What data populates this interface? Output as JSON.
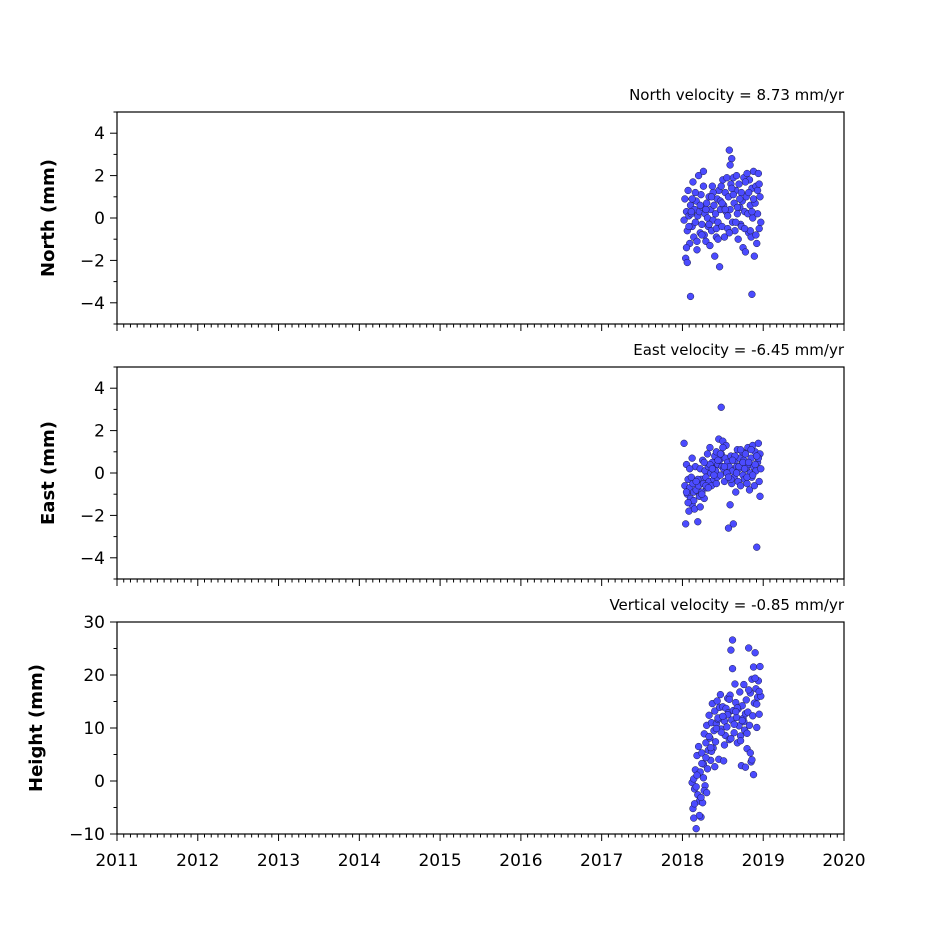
{
  "chart_data": [
    {
      "type": "scatter",
      "title": "North velocity = 8.73 mm/yr",
      "xlabel": "",
      "ylabel": "North (mm)",
      "xlim": [
        2011,
        2020
      ],
      "ylim": [
        -5,
        5
      ],
      "yticks": [
        "4",
        "2",
        "0",
        "−2",
        "−4"
      ],
      "ytick_values": [
        4,
        2,
        0,
        -2,
        -4
      ],
      "xticks": [],
      "color": "#4b4bff",
      "series": [
        {
          "x": [
            2018.02,
            2018.03,
            2018.04,
            2018.05,
            2018.06,
            2018.07,
            2018.08,
            2018.09,
            2018.1,
            2018.11,
            2018.12,
            2018.13,
            2018.14,
            2018.15,
            2018.16,
            2018.17,
            2018.18,
            2018.19,
            2018.2,
            2018.21,
            2018.22,
            2018.23,
            2018.24,
            2018.25,
            2018.26,
            2018.27,
            2018.28,
            2018.29,
            2018.3,
            2018.31,
            2018.32,
            2018.33,
            2018.34,
            2018.35,
            2018.36,
            2018.37,
            2018.38,
            2018.39,
            2018.4,
            2018.41,
            2018.42,
            2018.43,
            2018.44,
            2018.45,
            2018.46,
            2018.47,
            2018.48,
            2018.49,
            2018.5,
            2018.51,
            2018.52,
            2018.53,
            2018.54,
            2018.55,
            2018.56,
            2018.57,
            2018.58,
            2018.59,
            2018.6,
            2018.61,
            2018.62,
            2018.63,
            2018.64,
            2018.65,
            2018.66,
            2018.67,
            2018.68,
            2018.69,
            2018.7,
            2018.71,
            2018.72,
            2018.73,
            2018.74,
            2018.75,
            2018.76,
            2018.77,
            2018.78,
            2018.79,
            2018.8,
            2018.81,
            2018.82,
            2018.83,
            2018.84,
            2018.85,
            2018.86,
            2018.87,
            2018.88,
            2018.89,
            2018.9,
            2018.91,
            2018.92,
            2018.93,
            2018.94,
            2018.95,
            2018.96,
            2018.97,
            2018.05,
            2018.08,
            2018.12,
            2018.18,
            2018.22,
            2018.26,
            2018.33,
            2018.38,
            2018.42,
            2018.47,
            2018.53,
            2018.58,
            2018.63,
            2018.68,
            2018.73,
            2018.78,
            2018.84,
            2018.88,
            2018.93,
            2018.06,
            2018.11,
            2018.16,
            2018.24,
            2018.29,
            2018.36,
            2018.44,
            2018.49,
            2018.56,
            2018.61,
            2018.66,
            2018.71,
            2018.77,
            2018.82,
            2018.86,
            2018.91,
            2018.95,
            2018.1,
            2018.59,
            2018.86
          ],
          "y": [
            -0.1,
            0.9,
            -1.9,
            0.3,
            -0.6,
            1.3,
            0.1,
            -1.2,
            0.6,
            0.2,
            -0.4,
            1.7,
            -0.9,
            0.4,
            -0.2,
            0.8,
            -1.5,
            0.1,
            2.0,
            0.3,
            -0.7,
            1.1,
            -0.3,
            0.5,
            2.2,
            -0.8,
            0.2,
            -1.1,
            0.7,
            0.0,
            -0.4,
            1.0,
            -1.3,
            0.4,
            -0.6,
            1.5,
            -0.1,
            0.6,
            -1.8,
            0.2,
            -0.5,
            0.9,
            -0.2,
            1.3,
            -2.3,
            0.4,
            1.5,
            -0.4,
            1.8,
            0.6,
            -0.9,
            1.2,
            0.3,
            1.9,
            -0.5,
            1.0,
            3.2,
            0.4,
            1.6,
            2.8,
            -0.2,
            1.9,
            0.7,
            -0.6,
            1.3,
            2.0,
            0.2,
            -1.0,
            1.6,
            0.5,
            -0.3,
            1.2,
            0.8,
            -1.4,
            1.9,
            0.3,
            -1.6,
            1.0,
            2.1,
            0.2,
            -0.7,
            1.8,
            0.6,
            -0.9,
            1.4,
            0.0,
            2.2,
            -1.8,
            0.7,
            1.5,
            -1.2,
            0.2,
            2.1,
            -0.5,
            1.0,
            -0.2,
            -1.4,
            -0.4,
            0.9,
            -1.1,
            0.6,
            1.5,
            -0.3,
            1.2,
            -0.9,
            0.8,
            0.4,
            -0.7,
            1.1,
            0.5,
            -0.4,
            1.7,
            -0.6,
            0.9,
            1.3,
            -2.1,
            0.3,
            1.2,
            -0.8,
            0.4,
            1.0,
            -1.0,
            0.7,
            0.1,
            1.4,
            -0.2,
            0.9,
            -0.5,
            1.2,
            0.3,
            -0.8,
            1.6,
            -3.7,
            2.5,
            -3.6
          ]
        }
      ]
    },
    {
      "type": "scatter",
      "title": "East velocity = -6.45 mm/yr",
      "xlabel": "",
      "ylabel": "East (mm)",
      "xlim": [
        2011,
        2020
      ],
      "ylim": [
        -5,
        5
      ],
      "yticks": [
        "4",
        "2",
        "0",
        "−2",
        "−4"
      ],
      "ytick_values": [
        4,
        2,
        0,
        -2,
        -4
      ],
      "xticks": [],
      "color": "#4b4bff",
      "series": [
        {
          "x": [
            2018.02,
            2018.03,
            2018.04,
            2018.05,
            2018.06,
            2018.07,
            2018.08,
            2018.09,
            2018.1,
            2018.11,
            2018.12,
            2018.13,
            2018.14,
            2018.15,
            2018.16,
            2018.17,
            2018.18,
            2018.19,
            2018.2,
            2018.21,
            2018.22,
            2018.23,
            2018.24,
            2018.25,
            2018.26,
            2018.27,
            2018.28,
            2018.29,
            2018.3,
            2018.31,
            2018.32,
            2018.33,
            2018.34,
            2018.35,
            2018.36,
            2018.37,
            2018.38,
            2018.39,
            2018.4,
            2018.41,
            2018.42,
            2018.43,
            2018.44,
            2018.45,
            2018.46,
            2018.47,
            2018.48,
            2018.49,
            2018.5,
            2018.51,
            2018.52,
            2018.53,
            2018.54,
            2018.55,
            2018.56,
            2018.57,
            2018.58,
            2018.59,
            2018.6,
            2018.61,
            2018.62,
            2018.63,
            2018.64,
            2018.65,
            2018.66,
            2018.67,
            2018.68,
            2018.69,
            2018.7,
            2018.71,
            2018.72,
            2018.73,
            2018.74,
            2018.75,
            2018.76,
            2018.77,
            2018.78,
            2018.79,
            2018.8,
            2018.81,
            2018.82,
            2018.83,
            2018.84,
            2018.85,
            2018.86,
            2018.87,
            2018.88,
            2018.89,
            2018.9,
            2018.91,
            2018.92,
            2018.93,
            2018.94,
            2018.95,
            2018.96,
            2018.97,
            2018.05,
            2018.09,
            2018.14,
            2018.19,
            2018.24,
            2018.29,
            2018.34,
            2018.39,
            2018.44,
            2018.5,
            2018.55,
            2018.6,
            2018.65,
            2018.7,
            2018.75,
            2018.8,
            2018.85,
            2018.9,
            2018.94,
            2018.07,
            2018.12,
            2018.17,
            2018.22,
            2018.27,
            2018.32,
            2018.37,
            2018.42,
            2018.47,
            2018.52,
            2018.57,
            2018.62,
            2018.67,
            2018.72,
            2018.77,
            2018.82,
            2018.87,
            2018.92,
            2018.96,
            2018.48
          ],
          "y": [
            1.4,
            -0.6,
            -2.4,
            0.4,
            -1.0,
            -0.3,
            -1.8,
            -0.7,
            -1.2,
            -0.2,
            -1.5,
            -0.5,
            -0.9,
            -1.7,
            0.3,
            -0.8,
            -0.4,
            -2.3,
            -0.6,
            -1.1,
            0.2,
            -0.3,
            -0.9,
            0.6,
            -0.5,
            -1.2,
            0.1,
            -0.2,
            -0.7,
            0.9,
            0.3,
            -0.4,
            1.2,
            0.0,
            -0.6,
            0.5,
            0.2,
            -0.3,
            0.8,
            0.1,
            1.0,
            -0.2,
            0.4,
            1.6,
            0.6,
            -0.1,
            0.9,
            0.3,
            1.5,
            0.2,
            -0.4,
            0.7,
            1.3,
            0.0,
            0.5,
            -2.6,
            0.3,
            -1.5,
            0.8,
            -0.5,
            0.1,
            -2.4,
            -0.2,
            0.6,
            -0.9,
            0.3,
            1.1,
            -0.4,
            0.2,
            0.7,
            -0.6,
            0.4,
            1.0,
            -0.1,
            0.6,
            -0.3,
            0.9,
            0.2,
            -0.5,
            1.2,
            0.4,
            -0.8,
            0.0,
            0.7,
            -0.2,
            1.3,
            0.3,
            -0.6,
            1.0,
            0.1,
            -3.5,
            0.5,
            1.4,
            -0.4,
            0.9,
            0.2,
            -0.9,
            0.2,
            -1.3,
            -0.3,
            -1.0,
            -0.6,
            0.4,
            -0.1,
            0.6,
            1.2,
            0.0,
            -0.3,
            0.8,
            0.3,
            0.5,
            -0.2,
            1.1,
            0.4,
            0.7,
            -1.4,
            0.7,
            -0.4,
            -1.6,
            0.5,
            -0.7,
            0.2,
            -0.5,
            0.9,
            0.3,
            -0.2,
            0.6,
            0.0,
            1.1,
            0.2,
            0.5,
            -0.1,
            0.8,
            -1.1,
            3.1
          ]
        }
      ]
    },
    {
      "type": "scatter",
      "title": "Vertical velocity = -0.85 mm/yr",
      "xlabel": "",
      "ylabel": "Height (mm)",
      "xlim": [
        2011,
        2020
      ],
      "ylim": [
        -10,
        30
      ],
      "yticks": [
        "30",
        "20",
        "10",
        "0",
        "−10"
      ],
      "ytick_values": [
        30,
        20,
        10,
        0,
        -10
      ],
      "xticks": [
        "2011",
        "2012",
        "2013",
        "2014",
        "2015",
        "2016",
        "2017",
        "2018",
        "2019",
        "2020"
      ],
      "xtick_values": [
        2011,
        2012,
        2013,
        2014,
        2015,
        2016,
        2017,
        2018,
        2019,
        2020
      ],
      "color": "#4b4bff",
      "series": [
        {
          "x": [
            2018.12,
            2018.13,
            2018.14,
            2018.15,
            2018.16,
            2018.17,
            2018.18,
            2018.19,
            2018.2,
            2018.21,
            2018.22,
            2018.23,
            2018.24,
            2018.25,
            2018.26,
            2018.27,
            2018.28,
            2018.29,
            2018.3,
            2018.31,
            2018.32,
            2018.33,
            2018.34,
            2018.35,
            2018.36,
            2018.37,
            2018.38,
            2018.39,
            2018.4,
            2018.41,
            2018.42,
            2018.43,
            2018.44,
            2018.45,
            2018.46,
            2018.47,
            2018.48,
            2018.49,
            2018.5,
            2018.51,
            2018.52,
            2018.53,
            2018.54,
            2018.55,
            2018.56,
            2018.57,
            2018.58,
            2018.59,
            2018.6,
            2018.61,
            2018.62,
            2018.63,
            2018.64,
            2018.65,
            2018.66,
            2018.67,
            2018.68,
            2018.69,
            2018.7,
            2018.71,
            2018.72,
            2018.73,
            2018.74,
            2018.75,
            2018.76,
            2018.77,
            2018.78,
            2018.79,
            2018.8,
            2018.81,
            2018.82,
            2018.83,
            2018.84,
            2018.85,
            2018.86,
            2018.87,
            2018.88,
            2018.89,
            2018.9,
            2018.91,
            2018.92,
            2018.93,
            2018.94,
            2018.95,
            2018.96,
            2018.97,
            2018.15,
            2018.18,
            2018.21,
            2018.24,
            2018.27,
            2018.3,
            2018.33,
            2018.36,
            2018.4,
            2018.44,
            2018.48,
            2018.52,
            2018.56,
            2018.6,
            2018.64,
            2018.68,
            2018.72,
            2018.76,
            2018.8,
            2018.84,
            2018.88,
            2018.92,
            2018.95,
            2018.17,
            2018.23,
            2018.29,
            2018.35,
            2018.42,
            2018.5,
            2018.58,
            2018.66,
            2018.74,
            2018.82,
            2018.9,
            2018.62,
            2018.78,
            2018.86,
            2018.14,
            2018.26
          ],
          "y": [
            -0.3,
            -5.2,
            0.4,
            -1.5,
            2.1,
            -9.0,
            4.8,
            -2.6,
            6.5,
            -3.8,
            1.7,
            -6.8,
            5.3,
            -4.1,
            3.2,
            8.9,
            -0.9,
            7.2,
            10.5,
            2.3,
            5.8,
            12.4,
            8.1,
            3.9,
            11.0,
            14.6,
            6.2,
            9.5,
            13.2,
            7.4,
            10.8,
            15.1,
            11.6,
            4.1,
            13.9,
            16.3,
            9.8,
            12.1,
            14.0,
            3.8,
            11.3,
            8.6,
            13.7,
            10.2,
            15.6,
            12.9,
            7.8,
            16.2,
            24.7,
            11.5,
            21.2,
            13.3,
            9.1,
            18.3,
            14.8,
            12.0,
            7.2,
            13.6,
            10.4,
            16.8,
            8.5,
            2.9,
            14.2,
            11.8,
            18.2,
            9.6,
            12.7,
            15.3,
            6.1,
            13.0,
            25.1,
            10.5,
            16.6,
            3.6,
            19.2,
            12.3,
            21.5,
            14.7,
            24.2,
            17.4,
            10.1,
            15.8,
            18.9,
            12.6,
            21.6,
            16.0,
            -4.3,
            1.1,
            -6.5,
            3.3,
            -1.8,
            -2.2,
            8.4,
            5.6,
            2.7,
            11.9,
            9.2,
            6.8,
            12.5,
            8.0,
            10.7,
            13.8,
            7.6,
            11.2,
            9.0,
            5.3,
            1.2,
            14.5,
            16.9,
            -1.1,
            -3.1,
            4.4,
            6.3,
            9.9,
            12.2,
            15.4,
            13.1,
            11.4,
            17.2,
            19.4,
            26.6,
            2.6,
            4.0,
            -7.0,
            0.6
          ]
        }
      ]
    }
  ]
}
